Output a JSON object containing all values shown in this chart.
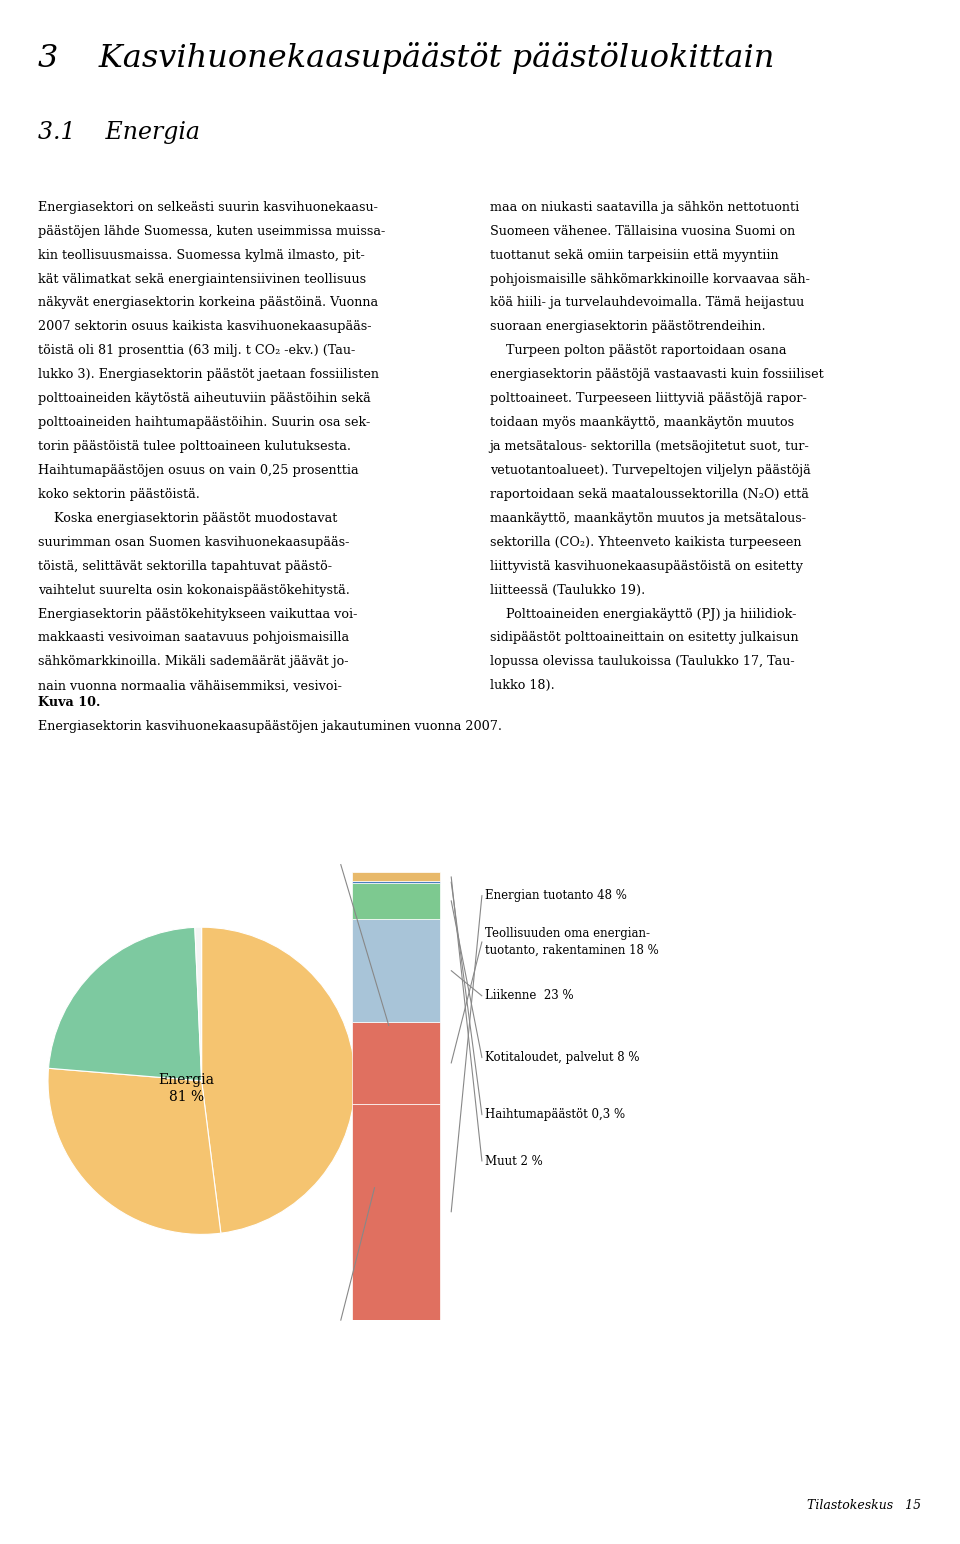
{
  "page_title": "3    Kasvihuonekaasupäästöt päästöluokittain",
  "section_title": "3.1    Energia",
  "body_left_lines": [
    "Energiasektori on selkeästi suurin kasvihuonekaasu-",
    "päästöjen lähde Suomessa, kuten useimmissa muissa-",
    "kin teollisuusmaissa. Suomessa kylmä ilmasto, pit-",
    "kät välimatkat sekä energiaintensiivinen teollisuus",
    "näkyvät energiasektorin korkeina päästöinä. Vuonna",
    "2007 sektorin osuus kaikista kasvihuonekaasupääs-",
    "töistä oli 81 prosenttia (63 milj. t CO₂ -ekv.) (Tau-",
    "lukko 3). Energiasektorin päästöt jaetaan fossiilisten",
    "polttoaineiden käytöstä aiheutuviin päästöihin sekä",
    "polttoaineiden haihtumapäästöihin. Suurin osa sek-",
    "torin päästöistä tulee polttoaineen kulutuksesta.",
    "Haihtumapäästöjen osuus on vain 0,25 prosenttia",
    "koko sektorin päästöistä.",
    "    Koska energiasektorin päästöt muodostavat",
    "suurimman osan Suomen kasvihuonekaasupääs-",
    "töistä, selittävät sektorilla tapahtuvat päästö-",
    "vaihtelut suurelta osin kokonaispäästökehitystä.",
    "Energiasektorin päästökehitykseen vaikuttaa voi-",
    "makkaasti vesivoiman saatavuus pohjoismaisilla",
    "sähkömarkkinoilla. Mikäli sademäärät jäävät jo-",
    "nain vuonna normaalia vähäisemmiksi, vesivoi-"
  ],
  "body_right_lines": [
    "maa on niukasti saatavilla ja sähkön nettotuonti",
    "Suomeen vähenee. Tällaisina vuosina Suomi on",
    "tuottanut sekä omiin tarpeisiin että myyntiin",
    "pohjoismaisille sähkömarkkinoille korvaavaa säh-",
    "köä hiili- ja turvelauhdevoimalla. Tämä heijastuu",
    "suoraan energiasektorin päästötrendeihin.",
    "    Turpeen polton päästöt raportoidaan osana",
    "energiasektorin päästöjä vastaavasti kuin fossiiliset",
    "polttoaineet. Turpeeseen liittyviä päästöjä rapor-",
    "toidaan myös maankäyttö, maankäytön muutos",
    "ja metsätalous- sektorilla (metsäojitetut suot, tur-",
    "vetuotantoalueet). Turvepeltojen viljelyn päästöjä",
    "raportoidaan sekä maataloussektorilla (N₂O) että",
    "maankäyttö, maankäytön muutos ja metsätalous-",
    "sektorilla (CO₂). Yhteenveto kaikista turpeeseen",
    "liittyvistä kasvihuonekaasupäästöistä on esitetty",
    "liitteessä (Taulukko 19).",
    "    Polttoaineiden energiakäyttö (PJ) ja hiilidiok-",
    "sidipäästöt polttoaineittain on esitetty julkaisun",
    "lopussa olevissa taulukoissa (Taulukko 17, Tau-",
    "lukko 18)."
  ],
  "figure_caption_bold": "Kuva 10.",
  "figure_caption": "Energiasektorin kasvihuonekaasupäästöjen jakautuminen vuonna 2007.",
  "footer_text": "Tilastokeskus   15",
  "pie_label": "Energia\n81 %",
  "pie_sizes": [
    48,
    28.3,
    23,
    0.7
  ],
  "pie_colors": [
    "#F5C470",
    "#F5C470",
    "#7DC9A0",
    "#F5F5F5"
  ],
  "bar_percents": [
    48,
    18,
    23,
    8,
    0.3,
    2
  ],
  "bar_colors": [
    "#E07060",
    "#E07060",
    "#A8C4D8",
    "#7DC990",
    "#4A7FBE",
    "#E8B96A"
  ],
  "bar_labels": [
    "Energian tuotanto 48 %",
    "Teollisuuden oma energian-\ntuotanto, rakentaminen 18 %",
    "Liikenne  23 %",
    "Kotitaloudet, palvelut 8 %",
    "Haihtumapäästöt 0,3 %",
    "Muut 2 %"
  ],
  "background_color": "#FFFFFF"
}
